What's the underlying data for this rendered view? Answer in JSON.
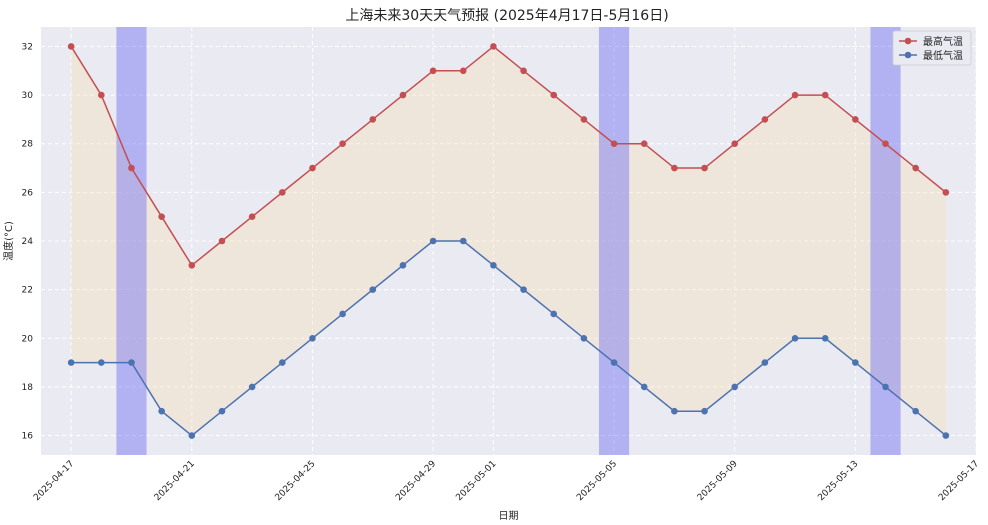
{
  "chart_data": {
    "type": "line",
    "title": "上海未来30天天气预报 (2025年4月17日-5月16日)",
    "xlabel": "日期",
    "ylabel": "温度(°C)",
    "x": [
      "2025-04-17",
      "2025-04-18",
      "2025-04-19",
      "2025-04-20",
      "2025-04-21",
      "2025-04-22",
      "2025-04-23",
      "2025-04-24",
      "2025-04-25",
      "2025-04-26",
      "2025-04-27",
      "2025-04-28",
      "2025-04-29",
      "2025-04-30",
      "2025-05-01",
      "2025-05-02",
      "2025-05-03",
      "2025-05-04",
      "2025-05-05",
      "2025-05-06",
      "2025-05-07",
      "2025-05-08",
      "2025-05-09",
      "2025-05-10",
      "2025-05-11",
      "2025-05-12",
      "2025-05-13",
      "2025-05-14",
      "2025-05-15",
      "2025-05-16"
    ],
    "xticks": [
      "2025-04-17",
      "2025-04-21",
      "2025-04-25",
      "2025-04-29",
      "2025-05-01",
      "2025-05-05",
      "2025-05-09",
      "2025-05-13",
      "2025-05-17"
    ],
    "yticks": [
      16,
      18,
      20,
      22,
      24,
      26,
      28,
      30,
      32
    ],
    "ylim": [
      15.2,
      32.8
    ],
    "xlim": [
      "2025-04-16",
      "2025-05-17"
    ],
    "series": [
      {
        "name": "最高气温",
        "color": "#c44e52",
        "values": [
          32,
          30,
          27,
          25,
          23,
          24,
          25,
          26,
          27,
          28,
          29,
          30,
          31,
          31,
          32,
          31,
          30,
          29,
          28,
          28,
          27,
          27,
          28,
          29,
          30,
          30,
          29,
          28,
          27,
          26
        ]
      },
      {
        "name": "最低气温",
        "color": "#4c72b0",
        "values": [
          19,
          19,
          19,
          17,
          16,
          17,
          18,
          19,
          20,
          21,
          22,
          23,
          24,
          24,
          23,
          22,
          21,
          20,
          19,
          18,
          17,
          17,
          18,
          19,
          20,
          20,
          19,
          18,
          17,
          16
        ]
      }
    ],
    "fill_between": {
      "color": "#f5deb3"
    },
    "highlight_bands": [
      {
        "start": "2025-04-18.5",
        "end": "2025-04-19.5",
        "color": "#6f6ff5"
      },
      {
        "start": "2025-05-04.5",
        "end": "2025-05-05.5",
        "color": "#6f6ff5"
      },
      {
        "start": "2025-05-13.5",
        "end": "2025-05-14.5",
        "color": "#6f6ff5"
      }
    ],
    "grid": true,
    "legend_position": "top-right",
    "background": "#eaeaf2"
  }
}
